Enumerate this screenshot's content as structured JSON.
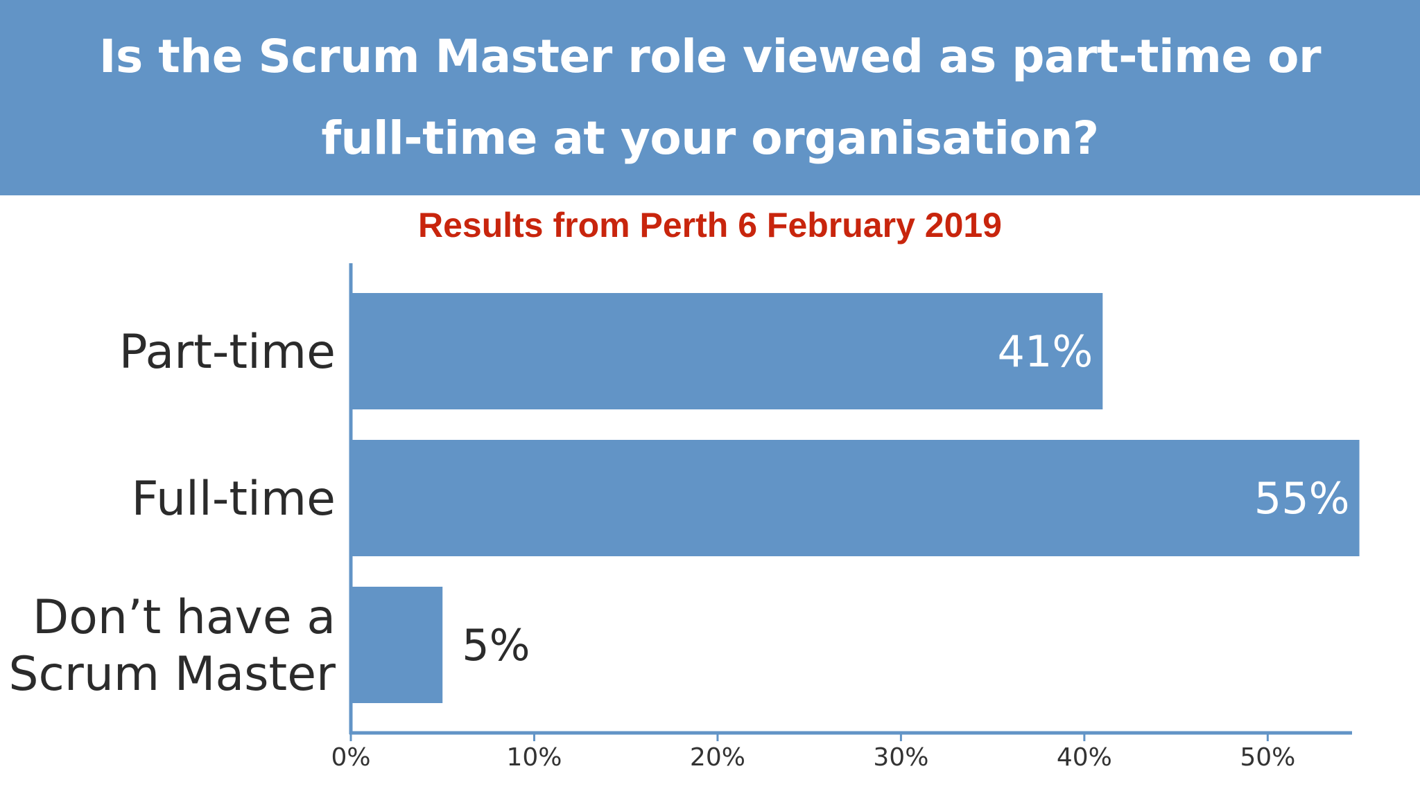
{
  "chart_data": {
    "type": "bar",
    "orientation": "horizontal",
    "title": "Is the Scrum Master role viewed as part-time or full-time at your organisation?",
    "subtitle": "Results from Perth 6 February 2019",
    "categories": [
      [
        "Part-time"
      ],
      [
        "Full-time"
      ],
      [
        "Don’t have a",
        "Scrum Master"
      ]
    ],
    "values": [
      41,
      55,
      5
    ],
    "data_labels": [
      "41%",
      "55%",
      "5%"
    ],
    "xlim": [
      0,
      54.6
    ],
    "x_ticks": [
      0,
      10,
      20,
      30,
      40,
      50
    ],
    "x_tick_labels": [
      "0%",
      "10%",
      "20%",
      "30%",
      "40%",
      "50%"
    ],
    "grid": false,
    "legend": "none"
  },
  "colors": {
    "banner": "#6294c6",
    "bar": "#6294c6",
    "subtitle": "#c8250d",
    "axis": "#6294c6",
    "label_inside": "#ffffff",
    "label_outside": "#2b2b2b"
  }
}
